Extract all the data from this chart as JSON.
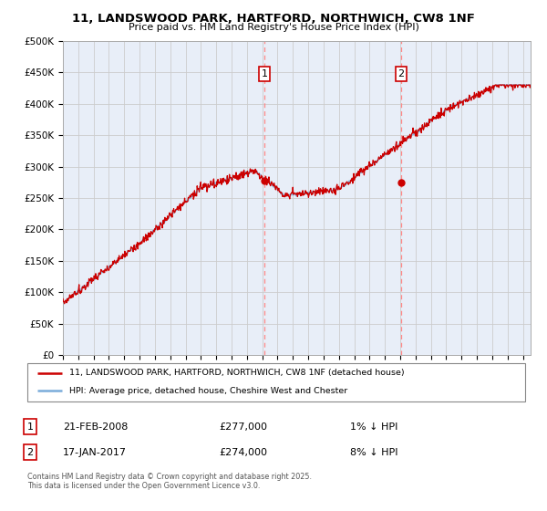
{
  "title": "11, LANDSWOOD PARK, HARTFORD, NORTHWICH, CW8 1NF",
  "subtitle": "Price paid vs. HM Land Registry's House Price Index (HPI)",
  "ylabel_ticks": [
    "£0",
    "£50K",
    "£100K",
    "£150K",
    "£200K",
    "£250K",
    "£300K",
    "£350K",
    "£400K",
    "£450K",
    "£500K"
  ],
  "ytick_values": [
    0,
    50000,
    100000,
    150000,
    200000,
    250000,
    300000,
    350000,
    400000,
    450000,
    500000
  ],
  "ylim": [
    0,
    500000
  ],
  "xlim_start": 1995.0,
  "xlim_end": 2025.5,
  "marker1_x": 2008.13,
  "marker1_y": 277000,
  "marker1_label": "1",
  "marker2_x": 2017.05,
  "marker2_y": 274000,
  "marker2_label": "2",
  "red_line_color": "#cc0000",
  "blue_line_color": "#7aacda",
  "vline_color": "#ff8888",
  "grid_color": "#cccccc",
  "background_color": "#e8eef8",
  "legend1": "11, LANDSWOOD PARK, HARTFORD, NORTHWICH, CW8 1NF (detached house)",
  "legend2": "HPI: Average price, detached house, Cheshire West and Chester",
  "table_row1": [
    "1",
    "21-FEB-2008",
    "£277,000",
    "1% ↓ HPI"
  ],
  "table_row2": [
    "2",
    "17-JAN-2017",
    "£274,000",
    "8% ↓ HPI"
  ],
  "footer": "Contains HM Land Registry data © Crown copyright and database right 2025.\nThis data is licensed under the Open Government Licence v3.0."
}
